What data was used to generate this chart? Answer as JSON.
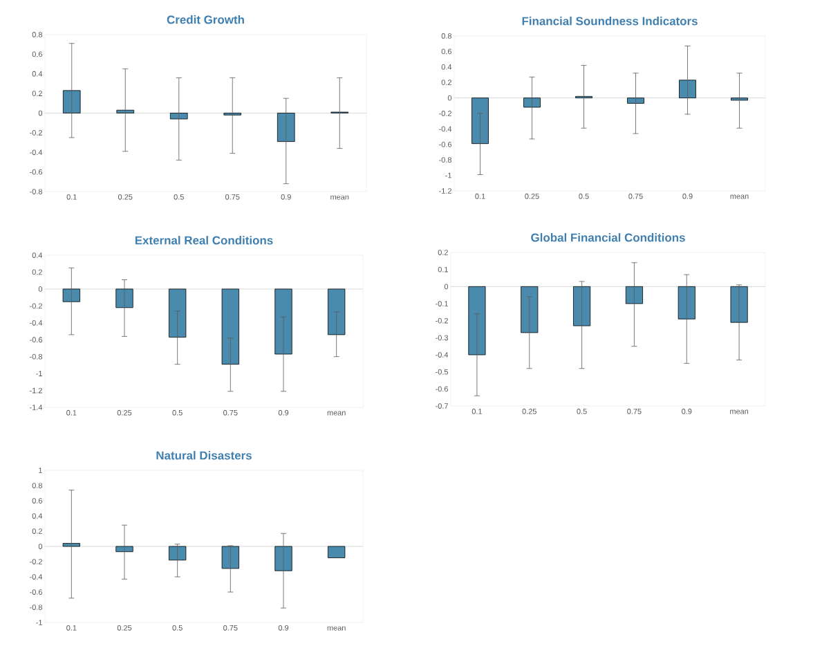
{
  "chart_data": [
    {
      "type": "bar",
      "title": "Credit Growth",
      "categories": [
        "0.1",
        "0.25",
        "0.5",
        "0.75",
        "0.9",
        "mean"
      ],
      "values": [
        0.23,
        0.03,
        -0.06,
        -0.02,
        -0.29,
        0.01
      ],
      "errors": [
        [
          -0.25,
          0.71
        ],
        [
          -0.39,
          0.45
        ],
        [
          -0.48,
          0.36
        ],
        [
          -0.41,
          0.36
        ],
        [
          -0.72,
          0.15
        ],
        [
          -0.36,
          0.36
        ]
      ],
      "color": "#4a8bad",
      "ylim": [
        -0.8,
        0.8
      ],
      "yticks": [
        -0.8,
        -0.6,
        -0.4,
        -0.2,
        0,
        0.2,
        0.4,
        0.6,
        0.8
      ]
    },
    {
      "type": "bar",
      "title": "Financial Soundness Indicators",
      "categories": [
        "0.1",
        "0.25",
        "0.5",
        "0.75",
        "0.9",
        "mean"
      ],
      "values": [
        -0.59,
        -0.12,
        0.02,
        -0.07,
        0.23,
        -0.03
      ],
      "errors": [
        [
          -0.99,
          -0.2
        ],
        [
          -0.53,
          0.27
        ],
        [
          -0.39,
          0.42
        ],
        [
          -0.46,
          0.32
        ],
        [
          -0.21,
          0.67
        ],
        [
          -0.39,
          0.32
        ]
      ],
      "color": "#4a8bad",
      "ylim": [
        -1.2,
        0.8
      ],
      "yticks": [
        -1.2,
        -1,
        -0.8,
        -0.6,
        -0.4,
        -0.2,
        0,
        0.2,
        0.4,
        0.6,
        0.8
      ]
    },
    {
      "type": "bar",
      "title": "External Real Conditions",
      "categories": [
        "0.1",
        "0.25",
        "0.5",
        "0.75",
        "0.9",
        "mean"
      ],
      "values": [
        -0.15,
        -0.22,
        -0.57,
        -0.89,
        -0.77,
        -0.54
      ],
      "errors": [
        [
          -0.54,
          0.25
        ],
        [
          -0.56,
          0.11
        ],
        [
          -0.89,
          -0.26
        ],
        [
          -1.21,
          -0.58
        ],
        [
          -1.21,
          -0.33
        ],
        [
          -0.8,
          -0.27
        ]
      ],
      "color": "#4a8bad",
      "ylim": [
        -1.4,
        0.4
      ],
      "yticks": [
        -1.4,
        -1.2,
        -1,
        -0.8,
        -0.6,
        -0.4,
        -0.2,
        0,
        0.2,
        0.4
      ]
    },
    {
      "type": "bar",
      "title": "Global Financial Conditions",
      "categories": [
        "0.1",
        "0.25",
        "0.5",
        "0.75",
        "0.9",
        "mean"
      ],
      "values": [
        -0.4,
        -0.27,
        -0.23,
        -0.1,
        -0.19,
        -0.21
      ],
      "errors": [
        [
          -0.64,
          -0.16
        ],
        [
          -0.48,
          -0.06
        ],
        [
          -0.48,
          0.03
        ],
        [
          -0.35,
          0.14
        ],
        [
          -0.45,
          0.07
        ],
        [
          -0.43,
          0.01
        ]
      ],
      "color": "#4a8bad",
      "ylim": [
        -0.7,
        0.2
      ],
      "yticks": [
        -0.7,
        -0.6,
        -0.5,
        -0.4,
        -0.3,
        -0.2,
        -0.1,
        0,
        0.1,
        0.2
      ]
    },
    {
      "type": "bar",
      "title": "Natural Disasters",
      "categories": [
        "0.1",
        "0.25",
        "0.5",
        "0.75",
        "0.9",
        "mean"
      ],
      "values": [
        0.04,
        -0.07,
        -0.18,
        -0.29,
        -0.32,
        -0.15
      ],
      "errors": [
        [
          -0.68,
          0.74
        ],
        [
          -0.43,
          0.28
        ],
        [
          -0.4,
          0.03
        ],
        [
          -0.6,
          0.01
        ],
        [
          -0.81,
          0.17
        ],
        null
      ],
      "color": "#4a8bad",
      "ylim": [
        -1,
        1
      ],
      "yticks": [
        -1,
        -0.8,
        -0.6,
        -0.4,
        -0.2,
        0,
        0.2,
        0.4,
        0.6,
        0.8,
        1
      ]
    }
  ]
}
